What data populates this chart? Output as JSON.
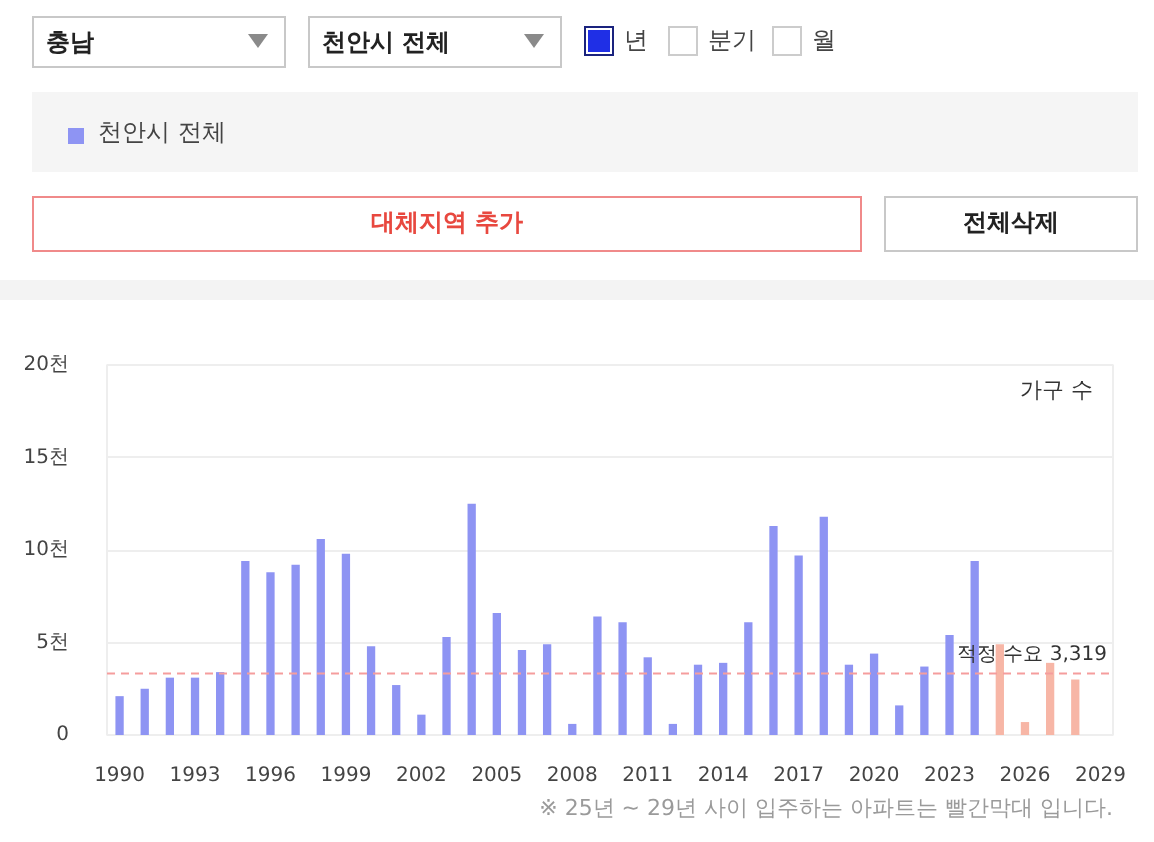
{
  "chart_data": {
    "type": "bar",
    "ylabel": "가구 수",
    "x": [
      1990,
      1991,
      1992,
      1993,
      1994,
      1995,
      1996,
      1997,
      1998,
      1999,
      2000,
      2001,
      2002,
      2003,
      2004,
      2005,
      2006,
      2007,
      2008,
      2009,
      2010,
      2011,
      2012,
      2013,
      2014,
      2015,
      2016,
      2017,
      2018,
      2019,
      2020,
      2021,
      2022,
      2023,
      2024,
      2025,
      2026,
      2027,
      2028
    ],
    "series": [
      {
        "name": "천안시 전체",
        "color": "#8e94f3",
        "colors": [
          "#8e94f3",
          "#8e94f3",
          "#8e94f3",
          "#8e94f3",
          "#8e94f3",
          "#8e94f3",
          "#8e94f3",
          "#8e94f3",
          "#8e94f3",
          "#8e94f3",
          "#8e94f3",
          "#8e94f3",
          "#8e94f3",
          "#8e94f3",
          "#8e94f3",
          "#8e94f3",
          "#8e94f3",
          "#8e94f3",
          "#8e94f3",
          "#8e94f3",
          "#8e94f3",
          "#8e94f3",
          "#8e94f3",
          "#8e94f3",
          "#8e94f3",
          "#8e94f3",
          "#8e94f3",
          "#8e94f3",
          "#8e94f3",
          "#8e94f3",
          "#8e94f3",
          "#8e94f3",
          "#8e94f3",
          "#8e94f3",
          "#8e94f3",
          "#f7b6a6",
          "#f7b6a6",
          "#f7b6a6",
          "#f7b6a6"
        ],
        "values": [
          2.1,
          2.5,
          3.1,
          3.1,
          3.4,
          9.4,
          8.8,
          9.2,
          10.6,
          9.8,
          4.8,
          2.7,
          1.1,
          5.3,
          12.5,
          6.6,
          4.6,
          4.9,
          0.6,
          6.4,
          6.1,
          4.2,
          0.6,
          3.8,
          3.9,
          6.1,
          11.3,
          9.7,
          11.8,
          3.8,
          4.4,
          1.6,
          3.7,
          5.4,
          9.4,
          4.9,
          0.7,
          3.9,
          3.0
        ]
      }
    ],
    "xlim": [
      1989.5,
      2029.5
    ],
    "xticks": [
      1990,
      1993,
      1996,
      1999,
      2002,
      2005,
      2008,
      2011,
      2014,
      2017,
      2020,
      2023,
      2026,
      2029
    ],
    "ylim": [
      0,
      20
    ],
    "yticks": [
      0,
      {
        "value": 5,
        "label": "5천"
      },
      {
        "value": 10,
        "label": "10천"
      },
      {
        "value": 15,
        "label": "15천"
      },
      {
        "value": 20,
        "label": "20천"
      }
    ],
    "grid": "y",
    "legend": "top",
    "ref_lines": [
      {
        "axis": "y",
        "value": 3.319,
        "label": "적정 수요 3,319",
        "color": "#f59d9d",
        "line_style": "dashed"
      }
    ],
    "annotations": [
      "충남",
      "천안시 전체",
      "년",
      "분기",
      "월",
      "대체지역 추가",
      "전체삭제",
      "※ 25년 ~ 29년 사이 입주하는 아파트는 빨간막대 입니다."
    ]
  }
}
